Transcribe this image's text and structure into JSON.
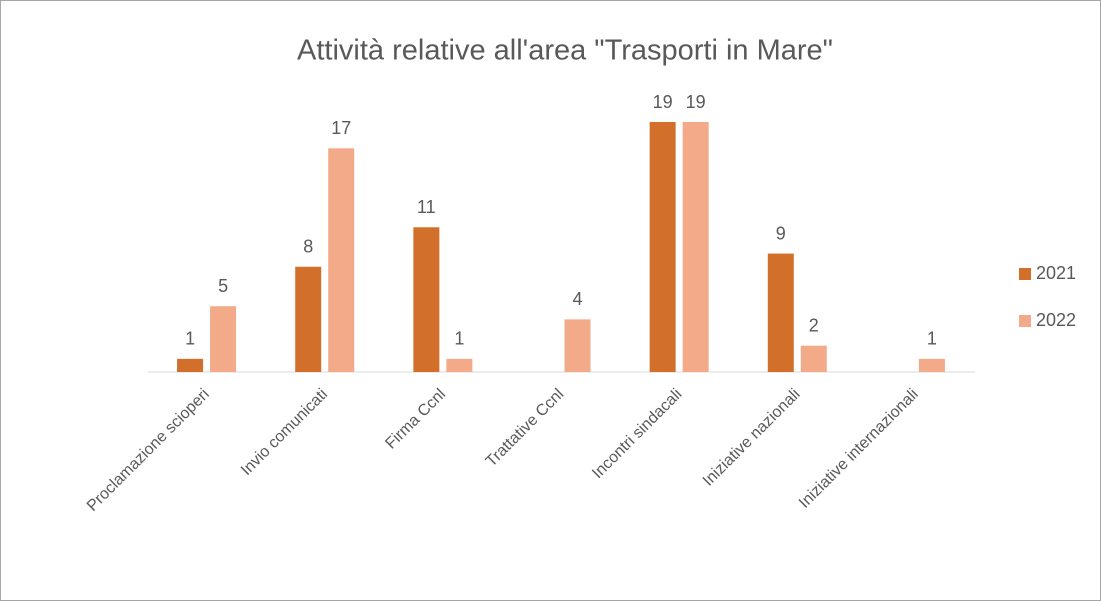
{
  "chart_data": {
    "type": "bar",
    "title": "Attività relative all'area \"Trasporti in Mare\"",
    "categories": [
      "Proclamazione scioperi",
      "Invio comunicati",
      "Firma Ccnl",
      "Trattative Ccnl",
      "Incontri sindacali",
      "Iniziative nazionali",
      "Iniziative internazionali"
    ],
    "series": [
      {
        "name": "2021",
        "color": "#d2702b",
        "values": [
          1,
          8,
          11,
          null,
          19,
          9,
          null
        ]
      },
      {
        "name": "2022",
        "color": "#f3aa89",
        "values": [
          5,
          17,
          1,
          4,
          19,
          2,
          1
        ]
      }
    ]
  }
}
